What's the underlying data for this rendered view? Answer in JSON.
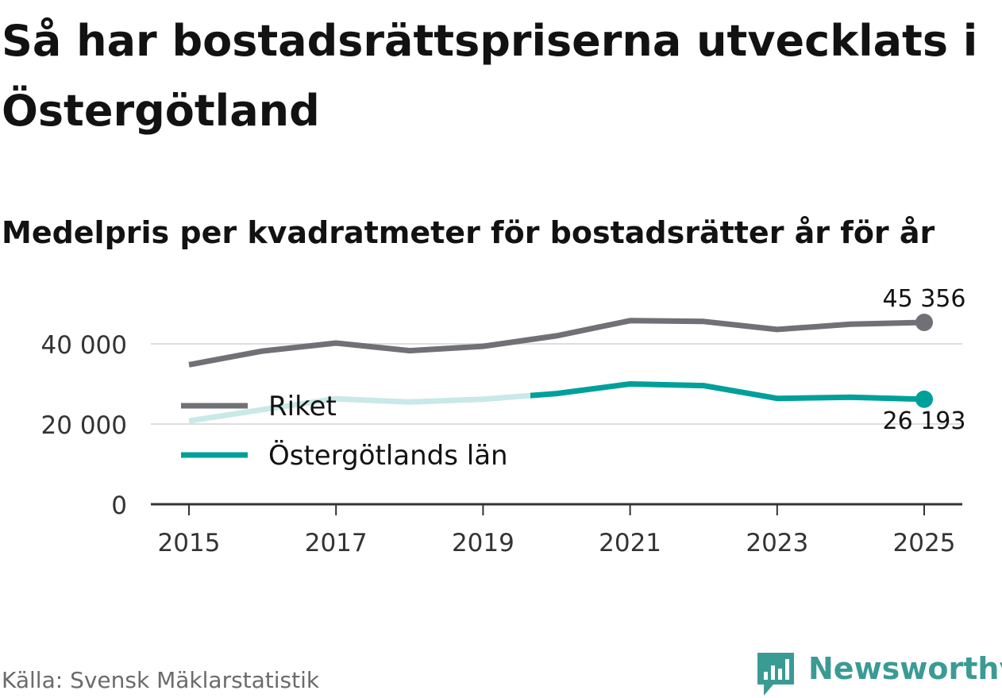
{
  "title": "Så har bostadsrättspriserna utvecklats i Östergötland",
  "subtitle": "Medelpris per kvadratmeter för bostadsrätter år för år",
  "source": "Källa: Svensk Mäklarstatistik",
  "brand": "Newsworthy",
  "colors": {
    "riket": "#707076",
    "lan": "#00a09a",
    "lan_faded": "#c8e9e7",
    "grid": "#dddddd",
    "axis": "#333333",
    "text": "#121212",
    "brand": "#3a9b94"
  },
  "chart_data": {
    "type": "line",
    "title": "Medelpris per kvadratmeter för bostadsrätter år för år",
    "xlabel": "",
    "ylabel": "",
    "x": [
      2015,
      2016,
      2017,
      2018,
      2019,
      2020,
      2021,
      2022,
      2023,
      2024,
      2025
    ],
    "xticks": [
      "2015",
      "2017",
      "2019",
      "2021",
      "2023",
      "2025"
    ],
    "yticks": [
      0,
      20000,
      40000
    ],
    "ytick_labels": [
      "0",
      "20 000",
      "40 000"
    ],
    "ylim": [
      0,
      45356
    ],
    "legend_position": "left-middle",
    "series": [
      {
        "name": "Riket",
        "values": [
          34800,
          38200,
          40200,
          38300,
          39400,
          42000,
          45800,
          45600,
          43600,
          44900,
          45356
        ],
        "end_label": "45 356"
      },
      {
        "name": "Östergötlands län",
        "values": [
          20800,
          23600,
          26300,
          25500,
          26200,
          27600,
          30000,
          29600,
          26400,
          26700,
          26193
        ],
        "end_label": "26 193"
      }
    ]
  }
}
